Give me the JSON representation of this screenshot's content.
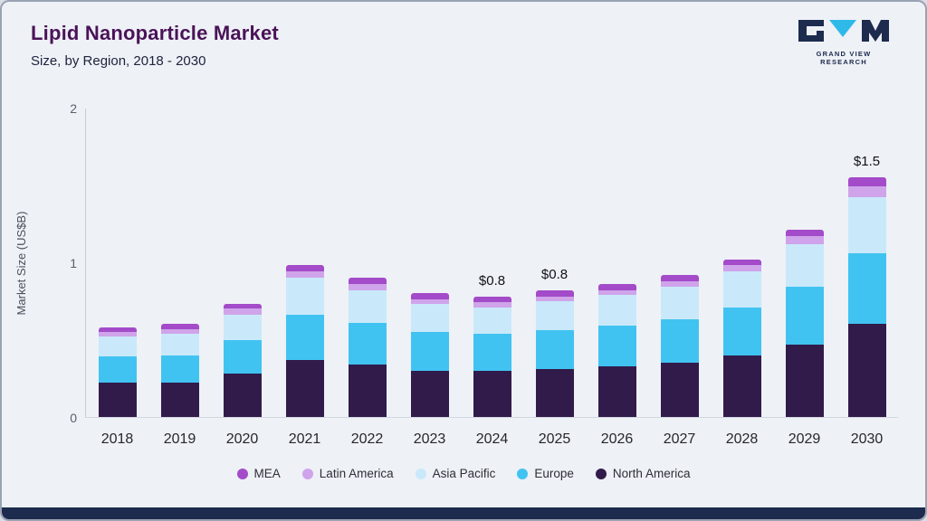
{
  "header": {
    "title": "Lipid Nanoparticle Market",
    "subtitle": "Size, by Region, 2018 - 2030"
  },
  "logo": {
    "text": "GRAND VIEW RESEARCH"
  },
  "chart_data": {
    "type": "bar",
    "stacked": true,
    "title": "Lipid Nanoparticle Market",
    "subtitle": "Size, by Region, 2018 - 2030",
    "ylabel": "Market Size (US$B)",
    "xlabel": "",
    "ylim": [
      0,
      2
    ],
    "yticks": [
      0,
      1,
      2
    ],
    "grid": false,
    "legend_position": "bottom",
    "categories": [
      "2018",
      "2019",
      "2020",
      "2021",
      "2022",
      "2023",
      "2024",
      "2025",
      "2026",
      "2027",
      "2028",
      "2029",
      "2030"
    ],
    "series": [
      {
        "name": "North America",
        "color": "#311b4b",
        "values": [
          0.22,
          0.22,
          0.28,
          0.37,
          0.34,
          0.3,
          0.3,
          0.31,
          0.33,
          0.35,
          0.4,
          0.47,
          0.6
        ]
      },
      {
        "name": "Europe",
        "color": "#41c3f2",
        "values": [
          0.17,
          0.18,
          0.22,
          0.29,
          0.27,
          0.25,
          0.24,
          0.25,
          0.26,
          0.28,
          0.31,
          0.37,
          0.46
        ]
      },
      {
        "name": "Asia Pacific",
        "color": "#c9e9fa",
        "values": [
          0.13,
          0.14,
          0.16,
          0.24,
          0.21,
          0.18,
          0.17,
          0.19,
          0.2,
          0.21,
          0.23,
          0.28,
          0.36
        ]
      },
      {
        "name": "Latin America",
        "color": "#cfa4ea",
        "values": [
          0.03,
          0.03,
          0.04,
          0.04,
          0.04,
          0.03,
          0.03,
          0.03,
          0.03,
          0.04,
          0.04,
          0.05,
          0.07
        ]
      },
      {
        "name": "MEA",
        "color": "#a34bc9",
        "values": [
          0.03,
          0.03,
          0.03,
          0.04,
          0.04,
          0.04,
          0.04,
          0.04,
          0.04,
          0.04,
          0.04,
          0.04,
          0.06
        ]
      }
    ],
    "annotations": [
      {
        "category": "2024",
        "label": "$0.8"
      },
      {
        "category": "2025",
        "label": "$0.8"
      },
      {
        "category": "2030",
        "label": "$1.5"
      }
    ],
    "totals": [
      0.58,
      0.6,
      0.73,
      0.98,
      0.9,
      0.8,
      0.78,
      0.82,
      0.86,
      0.92,
      1.02,
      1.21,
      1.55
    ]
  }
}
